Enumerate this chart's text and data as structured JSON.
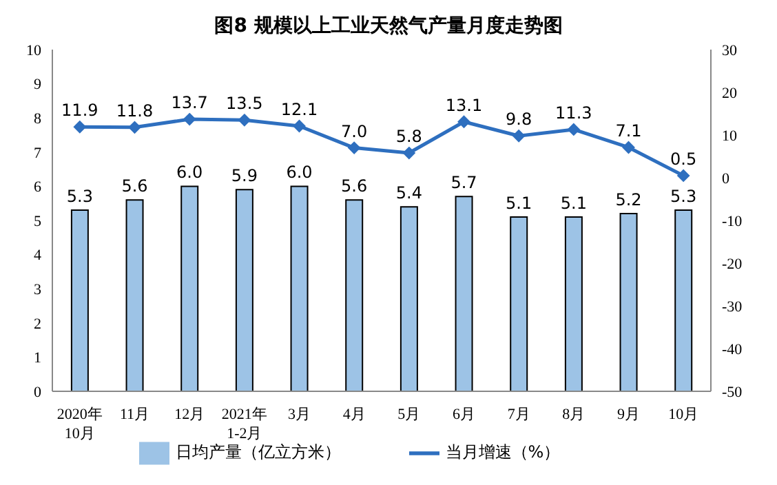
{
  "chart_data": {
    "type": "bar",
    "title": "图8  规模以上工业天然气产量月度走势图",
    "categories": [
      "2020年\n10月",
      "11月",
      "12月",
      "2021年\n1-2月",
      "3月",
      "4月",
      "5月",
      "6月",
      "7月",
      "8月",
      "9月",
      "10月"
    ],
    "series": [
      {
        "name": "日均产量（亿立方米）",
        "color": "#9dc3e6",
        "values": [
          5.3,
          5.6,
          6.0,
          5.9,
          6.0,
          5.6,
          5.4,
          5.7,
          5.1,
          5.1,
          5.2,
          5.3
        ],
        "value_labels": [
          "5.3",
          "5.6",
          "6.0",
          "5.9",
          "6.0",
          "5.6",
          "5.4",
          "5.7",
          "5.1",
          "5.1",
          "5.2",
          "5.3"
        ]
      },
      {
        "name": "当月增速（%）",
        "type": "line",
        "axis": "y2",
        "color": "#2e6fbf",
        "marker": "diamond",
        "values": [
          11.9,
          11.8,
          13.7,
          13.5,
          12.1,
          7.0,
          5.8,
          13.1,
          9.8,
          11.3,
          7.1,
          0.5
        ],
        "value_labels": [
          "11.9",
          "11.8",
          "13.7",
          "13.5",
          "12.1",
          "7.0",
          "5.8",
          "13.1",
          "9.8",
          "11.3",
          "7.1",
          "0.5"
        ]
      }
    ],
    "ylim": [
      0,
      10
    ],
    "yticks": [
      0,
      1,
      2,
      3,
      4,
      5,
      6,
      7,
      8,
      9,
      10
    ],
    "y2lim": [
      -50,
      30
    ],
    "y2ticks": [
      -50,
      -40,
      -30,
      -20,
      -10,
      0,
      10,
      20,
      30
    ],
    "legend": "bottom"
  }
}
